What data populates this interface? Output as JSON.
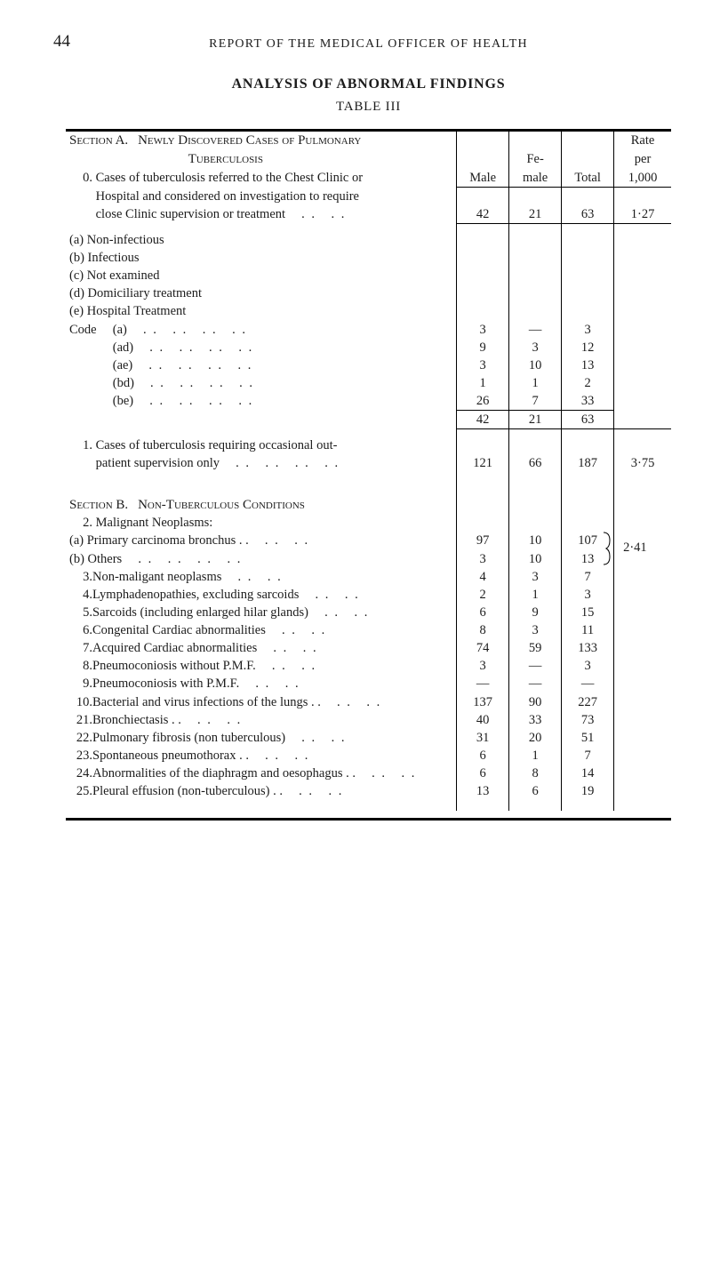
{
  "page_number": "44",
  "running_head": "REPORT OF THE MEDICAL OFFICER OF HEALTH",
  "titles": {
    "analysis": "ANALYSIS OF ABNORMAL FINDINGS",
    "table": "TABLE III"
  },
  "headers": {
    "male": "Male",
    "female_line1": "Fe-",
    "female_line2": "male",
    "total": "Total",
    "rate_line1": "Rate",
    "rate_line2": "per",
    "rate_line3": "1,000"
  },
  "sectionA": {
    "head_line1_a": "Section A.",
    "head_line1_b": "Newly Discovered Cases of Pulmonary",
    "head_line2": "Tuberculosis",
    "item0_num": "0.",
    "item0_text1": "Cases of tuberculosis referred to the Chest Clinic or",
    "item0_text2": "Hospital and considered on investigation to require",
    "item0_text3": "close Clinic supervision or treatment",
    "item0_male": "42",
    "item0_female": "21",
    "item0_total": "63",
    "item0_rate": "1·27",
    "sub_a": "(a) Non-infectious",
    "sub_b": "(b) Infectious",
    "sub_c": "(c) Not examined",
    "sub_d": "(d) Domiciliary treatment",
    "sub_e": "(e) Hospital Treatment",
    "code_label": "Code",
    "code_rows": [
      {
        "label": "(a)",
        "male": "3",
        "female": "—",
        "total": "3"
      },
      {
        "label": "(ad)",
        "male": "9",
        "female": "3",
        "total": "12"
      },
      {
        "label": "(ae)",
        "male": "3",
        "female": "10",
        "total": "13"
      },
      {
        "label": "(bd)",
        "male": "1",
        "female": "1",
        "total": "2"
      },
      {
        "label": "(be)",
        "male": "26",
        "female": "7",
        "total": "33"
      }
    ],
    "subtotalA_male": "42",
    "subtotalA_female": "21",
    "subtotalA_total": "63",
    "item1_num": "1.",
    "item1_text1": "Cases of tuberculosis requiring occasional out-",
    "item1_text2": "patient supervision only",
    "item1_male": "121",
    "item1_female": "66",
    "item1_total": "187",
    "item1_rate": "3·75"
  },
  "sectionB": {
    "head_a": "Section B.",
    "head_b": "Non-Tuberculous Conditions",
    "item2_num": "2.",
    "item2_text": "Malignant Neoplasms:",
    "item2a_label": "(a) Primary carcinoma bronchus . .",
    "item2a_male": "97",
    "item2a_female": "10",
    "item2a_total": "107",
    "item2b_label": "(b) Others",
    "item2b_male": "3",
    "item2b_female": "10",
    "item2b_total": "13",
    "brace_rate": "2·41",
    "rows": [
      {
        "num": "3.",
        "text": "Non-maligant neoplasms",
        "male": "4",
        "female": "3",
        "total": "7"
      },
      {
        "num": "4.",
        "text": "Lymphadenopathies, excluding sarcoids",
        "male": "2",
        "female": "1",
        "total": "3"
      },
      {
        "num": "5.",
        "text": "Sarcoids (including enlarged hilar glands)",
        "male": "6",
        "female": "9",
        "total": "15"
      },
      {
        "num": "6.",
        "text": "Congenital Cardiac abnormalities",
        "male": "8",
        "female": "3",
        "total": "11"
      },
      {
        "num": "7.",
        "text": "Acquired Cardiac abnormalities",
        "male": "74",
        "female": "59",
        "total": "133"
      },
      {
        "num": "8.",
        "text": "Pneumoconiosis without P.M.F.",
        "male": "3",
        "female": "—",
        "total": "3"
      },
      {
        "num": "9.",
        "text": "Pneumoconiosis with P.M.F.",
        "male": "—",
        "female": "—",
        "total": "—"
      },
      {
        "num": "10.",
        "text": "Bacterial and virus infections of the lungs . .",
        "male": "137",
        "female": "90",
        "total": "227"
      },
      {
        "num": "21.",
        "text": "Bronchiectasis . .",
        "male": "40",
        "female": "33",
        "total": "73"
      },
      {
        "num": "22.",
        "text": "Pulmonary fibrosis (non tuberculous)",
        "male": "31",
        "female": "20",
        "total": "51"
      },
      {
        "num": "23.",
        "text": "Spontaneous pneumothorax . .",
        "male": "6",
        "female": "1",
        "total": "7"
      },
      {
        "num": "24.",
        "text": "Abnormalities of the diaphragm and oesophagus  . .",
        "male": "6",
        "female": "8",
        "total": "14"
      },
      {
        "num": "25.",
        "text": "Pleural effusion (non-tuberculous) . .",
        "male": "13",
        "female": "6",
        "total": "19"
      }
    ]
  },
  "dots2": ". . . .",
  "dots4": ". . . . . . . ."
}
